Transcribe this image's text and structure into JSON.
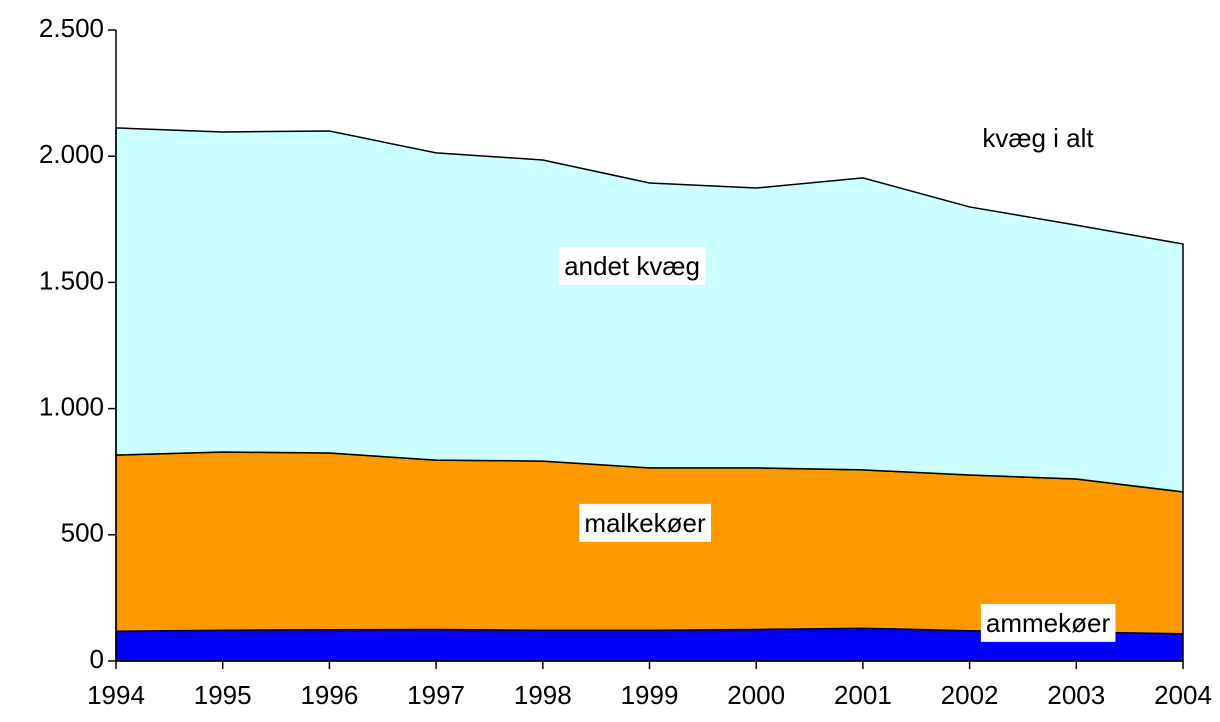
{
  "chart_data": {
    "type": "stacked_area",
    "x": [
      1994,
      1995,
      1996,
      1997,
      1998,
      1999,
      2000,
      2001,
      2002,
      2003,
      2004
    ],
    "series": [
      {
        "name": "ammekøer",
        "color": "#0000ff",
        "values": [
          118,
          122,
          124,
          125,
          122,
          122,
          125,
          130,
          120,
          115,
          108
        ]
      },
      {
        "name": "malkekøer",
        "color": "#ff9900",
        "values": [
          698,
          706,
          700,
          671,
          670,
          643,
          640,
          627,
          617,
          606,
          562
        ]
      },
      {
        "name": "andet kvæg",
        "color": "#ccffff",
        "values": [
          1296,
          1268,
          1276,
          1217,
          1193,
          1129,
          1109,
          1157,
          1062,
          1006,
          982
        ]
      }
    ],
    "annotation": "kvæg i alt",
    "xlim": [
      1994,
      2004
    ],
    "xticks": [
      1994,
      1995,
      1996,
      1997,
      1998,
      1999,
      2000,
      2001,
      2002,
      2003,
      2004
    ],
    "ylim": [
      0,
      2500
    ],
    "yticks": [
      0,
      500,
      {
        "value": 1000,
        "label": "1.000"
      },
      {
        "value": 1500,
        "label": "1.500"
      },
      {
        "value": 2000,
        "label": "2.000"
      },
      {
        "value": 2500,
        "label": "2.500"
      }
    ]
  }
}
